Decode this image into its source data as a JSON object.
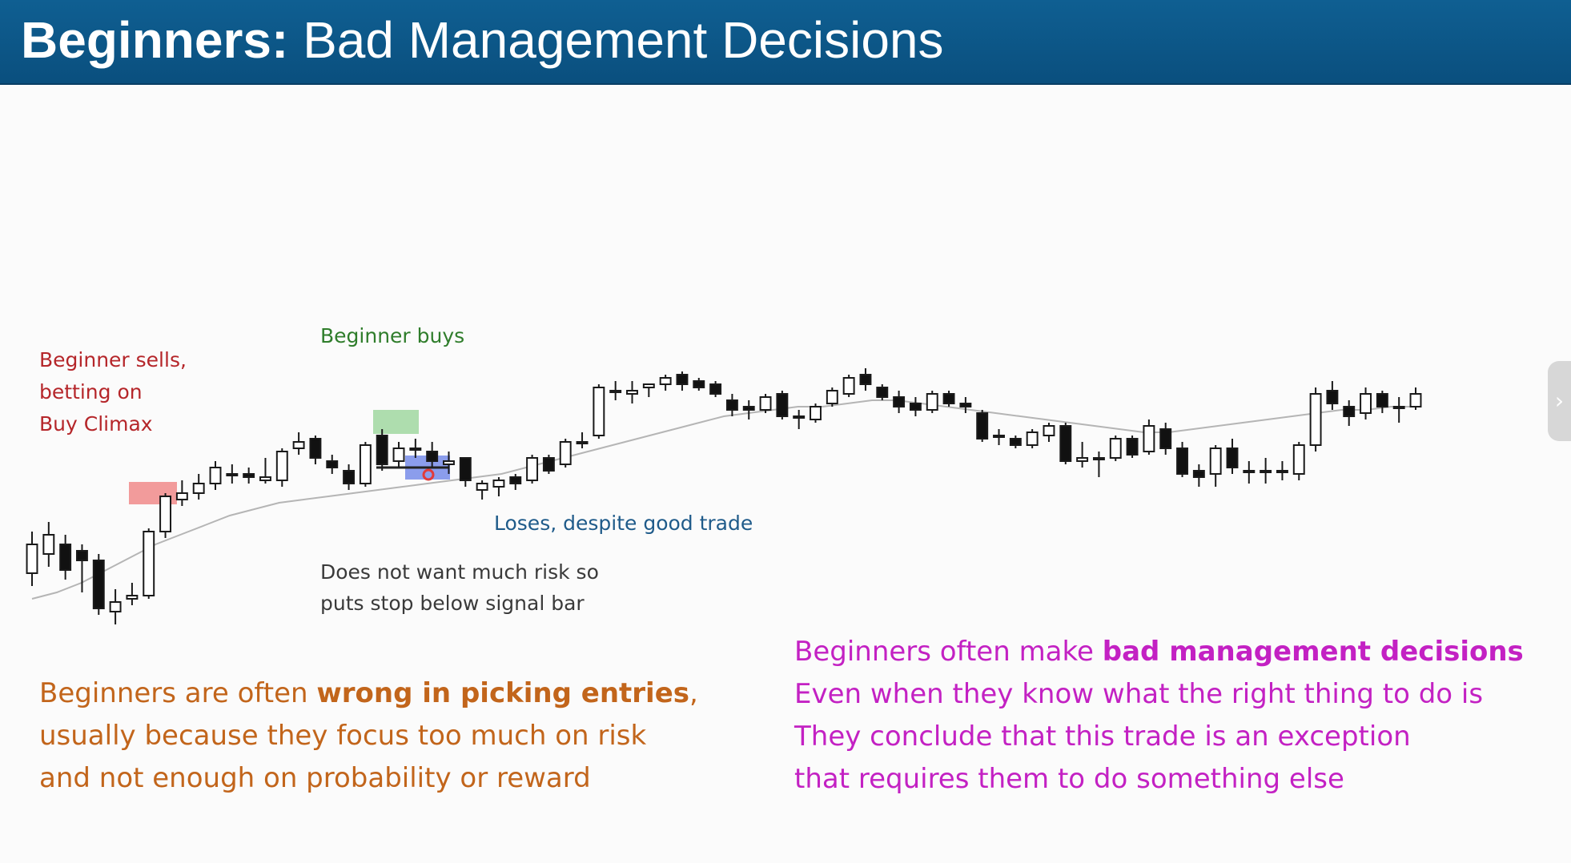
{
  "slide": {
    "title_bold": "Beginners:",
    "title_regular": " Bad Management Decisions"
  },
  "annotations": {
    "sells": [
      "Beginner sells,",
      "betting on",
      "Buy Climax"
    ],
    "buys": "Beginner buys",
    "loses": "Loses, despite good trade",
    "stop": [
      "Does not want much risk so",
      "puts stop below signal bar"
    ]
  },
  "left_paragraph": {
    "line1_pre": "Beginners are often ",
    "line1_bold": "wrong in picking entries",
    "line1_post": ",",
    "line2": "usually because they focus too much on risk",
    "line3": "and not enough on probability or reward"
  },
  "right_paragraph": {
    "line1_pre": "Beginners often make ",
    "line1_bold": "bad management decisions",
    "line2": "Even when they know what the right thing to do is",
    "line3": "They conclude that this trade is an exception",
    "line4": "that requires them to do something else"
  },
  "colors": {
    "title_bar": "#0c5686",
    "sell_zone": "#f08a8a",
    "buy_zone": "#9bd69b",
    "stop_zone": "#6f86e8",
    "ema": "#b5b5b5"
  },
  "nav": {
    "next_icon": "chevron-right-icon",
    "glyph": "›"
  },
  "chart_data": {
    "type": "candlestick",
    "note": "price values are relative chart units (no axis labels shown)",
    "ylim": [
      0,
      100
    ],
    "bars": [
      {
        "o": 22,
        "h": 35,
        "l": 18,
        "c": 31
      },
      {
        "o": 28,
        "h": 38,
        "l": 24,
        "c": 34
      },
      {
        "o": 31,
        "h": 34,
        "l": 20,
        "c": 23
      },
      {
        "o": 29,
        "h": 31,
        "l": 16,
        "c": 26
      },
      {
        "o": 26,
        "h": 28,
        "l": 9,
        "c": 11
      },
      {
        "o": 10,
        "h": 17,
        "l": 6,
        "c": 13
      },
      {
        "o": 14,
        "h": 19,
        "l": 12,
        "c": 15
      },
      {
        "o": 15,
        "h": 36,
        "l": 14,
        "c": 35
      },
      {
        "o": 35,
        "h": 47,
        "l": 33,
        "c": 46
      },
      {
        "o": 45,
        "h": 51,
        "l": 43,
        "c": 47
      },
      {
        "o": 47,
        "h": 53,
        "l": 45,
        "c": 50
      },
      {
        "o": 50,
        "h": 57,
        "l": 48,
        "c": 55
      },
      {
        "o": 53,
        "h": 56,
        "l": 50,
        "c": 53
      },
      {
        "o": 53,
        "h": 55,
        "l": 50,
        "c": 52
      },
      {
        "o": 51,
        "h": 58,
        "l": 50,
        "c": 52
      },
      {
        "o": 51,
        "h": 61,
        "l": 49,
        "c": 60
      },
      {
        "o": 61,
        "h": 66,
        "l": 59,
        "c": 63
      },
      {
        "o": 64,
        "h": 65,
        "l": 56,
        "c": 58
      },
      {
        "o": 57,
        "h": 59,
        "l": 53,
        "c": 55
      },
      {
        "o": 54,
        "h": 56,
        "l": 48,
        "c": 50
      },
      {
        "o": 50,
        "h": 63,
        "l": 49,
        "c": 62
      },
      {
        "o": 65,
        "h": 67,
        "l": 54,
        "c": 56
      },
      {
        "o": 57,
        "h": 63,
        "l": 55,
        "c": 61
      },
      {
        "o": 61,
        "h": 64,
        "l": 58,
        "c": 61
      },
      {
        "o": 60,
        "h": 63,
        "l": 55,
        "c": 57
      },
      {
        "o": 56,
        "h": 60,
        "l": 53,
        "c": 57
      },
      {
        "o": 58,
        "h": 57,
        "l": 49,
        "c": 51
      },
      {
        "o": 48,
        "h": 51,
        "l": 45,
        "c": 50
      },
      {
        "o": 49,
        "h": 52,
        "l": 46,
        "c": 51
      },
      {
        "o": 52,
        "h": 53,
        "l": 48,
        "c": 50
      },
      {
        "o": 51,
        "h": 59,
        "l": 50,
        "c": 58
      },
      {
        "o": 58,
        "h": 59,
        "l": 53,
        "c": 54
      },
      {
        "o": 56,
        "h": 64,
        "l": 55,
        "c": 63
      },
      {
        "o": 63,
        "h": 66,
        "l": 61,
        "c": 63
      },
      {
        "o": 65,
        "h": 81,
        "l": 64,
        "c": 80
      },
      {
        "o": 79,
        "h": 82,
        "l": 76,
        "c": 79
      },
      {
        "o": 78,
        "h": 82,
        "l": 75,
        "c": 79
      },
      {
        "o": 80,
        "h": 81,
        "l": 77,
        "c": 81
      },
      {
        "o": 81,
        "h": 84,
        "l": 79,
        "c": 83
      },
      {
        "o": 84,
        "h": 85,
        "l": 79,
        "c": 81
      },
      {
        "o": 82,
        "h": 83,
        "l": 79,
        "c": 80
      },
      {
        "o": 81,
        "h": 82,
        "l": 77,
        "c": 78
      },
      {
        "o": 76,
        "h": 78,
        "l": 71,
        "c": 73
      },
      {
        "o": 74,
        "h": 76,
        "l": 70,
        "c": 73
      },
      {
        "o": 73,
        "h": 78,
        "l": 72,
        "c": 77
      },
      {
        "o": 78,
        "h": 79,
        "l": 70,
        "c": 71
      },
      {
        "o": 71,
        "h": 73,
        "l": 67,
        "c": 71
      },
      {
        "o": 70,
        "h": 75,
        "l": 69,
        "c": 74
      },
      {
        "o": 75,
        "h": 80,
        "l": 74,
        "c": 79
      },
      {
        "o": 78,
        "h": 84,
        "l": 77,
        "c": 83
      },
      {
        "o": 84,
        "h": 86,
        "l": 79,
        "c": 81
      },
      {
        "o": 80,
        "h": 81,
        "l": 76,
        "c": 77
      },
      {
        "o": 77,
        "h": 79,
        "l": 72,
        "c": 74
      },
      {
        "o": 75,
        "h": 77,
        "l": 71,
        "c": 73
      },
      {
        "o": 73,
        "h": 79,
        "l": 72,
        "c": 78
      },
      {
        "o": 78,
        "h": 79,
        "l": 74,
        "c": 75
      },
      {
        "o": 75,
        "h": 77,
        "l": 72,
        "c": 74
      },
      {
        "o": 72,
        "h": 73,
        "l": 63,
        "c": 64
      },
      {
        "o": 65,
        "h": 67,
        "l": 62,
        "c": 65
      },
      {
        "o": 64,
        "h": 65,
        "l": 61,
        "c": 62
      },
      {
        "o": 62,
        "h": 67,
        "l": 61,
        "c": 66
      },
      {
        "o": 65,
        "h": 69,
        "l": 63,
        "c": 68
      },
      {
        "o": 68,
        "h": 69,
        "l": 56,
        "c": 57
      },
      {
        "o": 57,
        "h": 63,
        "l": 55,
        "c": 58
      },
      {
        "o": 58,
        "h": 60,
        "l": 52,
        "c": 58
      },
      {
        "o": 58,
        "h": 65,
        "l": 57,
        "c": 64
      },
      {
        "o": 64,
        "h": 65,
        "l": 58,
        "c": 59
      },
      {
        "o": 60,
        "h": 70,
        "l": 59,
        "c": 68
      },
      {
        "o": 67,
        "h": 69,
        "l": 59,
        "c": 61
      },
      {
        "o": 61,
        "h": 63,
        "l": 52,
        "c": 53
      },
      {
        "o": 54,
        "h": 56,
        "l": 49,
        "c": 52
      },
      {
        "o": 53,
        "h": 62,
        "l": 49,
        "c": 61
      },
      {
        "o": 61,
        "h": 64,
        "l": 53,
        "c": 55
      },
      {
        "o": 54,
        "h": 57,
        "l": 50,
        "c": 54
      },
      {
        "o": 54,
        "h": 58,
        "l": 50,
        "c": 54
      },
      {
        "o": 54,
        "h": 57,
        "l": 51,
        "c": 54
      },
      {
        "o": 53,
        "h": 63,
        "l": 51,
        "c": 62
      },
      {
        "o": 62,
        "h": 80,
        "l": 60,
        "c": 78
      },
      {
        "o": 79,
        "h": 82,
        "l": 73,
        "c": 75
      },
      {
        "o": 74,
        "h": 76,
        "l": 68,
        "c": 71
      },
      {
        "o": 72,
        "h": 80,
        "l": 70,
        "c": 78
      },
      {
        "o": 78,
        "h": 79,
        "l": 72,
        "c": 74
      },
      {
        "o": 74,
        "h": 77,
        "l": 69,
        "c": 74
      },
      {
        "o": 74,
        "h": 80,
        "l": 73,
        "c": 78
      }
    ],
    "ema": [
      14,
      16,
      19,
      23,
      27,
      31,
      34,
      37,
      40,
      42,
      44,
      45,
      46,
      47,
      48,
      49,
      50,
      51,
      52,
      53,
      55,
      57,
      59,
      61,
      63,
      65,
      67,
      69,
      71,
      72,
      73,
      74,
      74,
      75,
      76,
      76,
      75,
      74,
      73,
      72,
      71,
      70,
      69,
      68,
      67,
      66,
      66,
      67,
      68,
      69,
      70,
      71,
      72,
      73,
      73,
      74,
      74
    ]
  }
}
